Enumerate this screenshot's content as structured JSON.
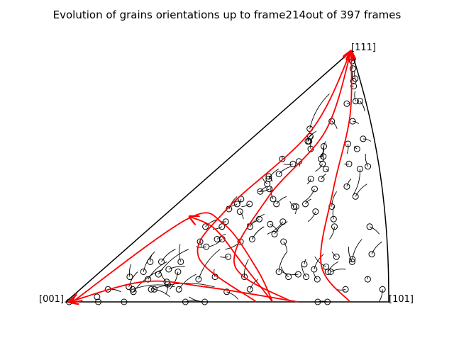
{
  "chart_data": {
    "type": "scatter",
    "title": "Evolution of grains orientations up to frame214out of 397 frames",
    "projection": "inverse pole figure (standard triangle)",
    "corner_labels": {
      "c001": "[001]",
      "c101": "[101]",
      "c111": "[111]"
    },
    "grid": false,
    "legend": "none",
    "colors": {
      "outline": "#000000",
      "trail": "#000000",
      "marker": "#000000",
      "curves": "#ff0000"
    },
    "coordinate_note": "u: fraction from [001] toward [101]; v: fraction from baseline toward [111]",
    "grains": [
      {
        "u": 0.01,
        "v": 0.0,
        "tu": 0.06,
        "tv": -0.09
      },
      {
        "u": 0.1,
        "v": 0.0,
        "tu": 0.06,
        "tv": -0.01
      },
      {
        "u": 0.09,
        "v": 0.05,
        "tu": 0.05,
        "tv": -0.01
      },
      {
        "u": 0.08,
        "v": 0.02,
        "tu": 0.14,
        "tv": -0.03
      },
      {
        "u": 0.18,
        "v": 0.0,
        "tu": 0.06,
        "tv": -0.02
      },
      {
        "u": 0.17,
        "v": 0.05,
        "tu": 0.13,
        "tv": 0.01
      },
      {
        "u": 0.18,
        "v": 0.04,
        "tu": 0.03,
        "tv": 0.09
      },
      {
        "u": 0.23,
        "v": 0.05,
        "tu": 0.2,
        "tv": 0.01
      },
      {
        "u": 0.24,
        "v": 0.05,
        "tu": 0.07,
        "tv": -0.03
      },
      {
        "u": 0.27,
        "v": 0.07,
        "tu": 0.02,
        "tv": -0.04
      },
      {
        "u": 0.32,
        "v": 0.05,
        "tu": 0.02,
        "tv": 0.06
      },
      {
        "u": 0.26,
        "v": 0.08,
        "tu": -0.04,
        "tv": 0.03
      },
      {
        "u": 0.15,
        "v": 0.06,
        "tu": -0.02,
        "tv": 0.06
      },
      {
        "u": 0.19,
        "v": 0.09,
        "tu": 0.01,
        "tv": 0.07
      },
      {
        "u": 0.21,
        "v": 0.11,
        "tu": 0.03,
        "tv": 0.1
      },
      {
        "u": 0.15,
        "v": 0.12,
        "tu": -0.03,
        "tv": 0.08
      },
      {
        "u": 0.12,
        "v": 0.1,
        "tu": -0.04,
        "tv": 0.05
      },
      {
        "u": 0.14,
        "v": 0.16,
        "tu": -0.02,
        "tv": 0.03
      },
      {
        "u": 0.18,
        "v": 0.16,
        "tu": 0.01,
        "tv": 0.05
      },
      {
        "u": 0.25,
        "v": 0.16,
        "tu": -0.06,
        "tv": 0.07
      },
      {
        "u": 0.23,
        "v": 0.13,
        "tu": 0.05,
        "tv": 0.01
      },
      {
        "u": 0.27,
        "v": 0.12,
        "tu": 0.02,
        "tv": -0.07
      },
      {
        "u": 0.36,
        "v": 0.09,
        "tu": 0.0,
        "tv": 0.12
      },
      {
        "u": 0.37,
        "v": 0.0,
        "tu": 0.05,
        "tv": 0.0
      },
      {
        "u": 0.43,
        "v": 0.0,
        "tu": -0.06,
        "tv": 0.02
      },
      {
        "u": 0.41,
        "v": 0.1,
        "tu": -0.02,
        "tv": 0.03
      },
      {
        "u": 0.48,
        "v": 0.04,
        "tu": 0.05,
        "tv": -0.03
      },
      {
        "u": 0.51,
        "v": 0.1,
        "tu": -0.02,
        "tv": 0.07
      },
      {
        "u": 0.55,
        "v": 0.05,
        "tu": 0.01,
        "tv": 0.04
      },
      {
        "u": 0.62,
        "v": 0.12,
        "tu": 0.0,
        "tv": 0.08
      },
      {
        "u": 0.66,
        "v": 0.1,
        "tu": -0.04,
        "tv": 0.04
      },
      {
        "u": 0.69,
        "v": 0.11,
        "tu": -0.06,
        "tv": 0.01
      },
      {
        "u": 0.7,
        "v": 0.15,
        "tu": 0.0,
        "tv": 0.02
      },
      {
        "u": 0.72,
        "v": 0.1,
        "tu": -0.03,
        "tv": 0.05
      },
      {
        "u": 0.76,
        "v": 0.09,
        "tu": -0.02,
        "tv": 0.03
      },
      {
        "u": 0.79,
        "v": 0.12,
        "tu": 0.03,
        "tv": 0.04
      },
      {
        "u": 0.8,
        "v": 0.12,
        "tu": 0.05,
        "tv": 0.01
      },
      {
        "u": 0.78,
        "v": 0.14,
        "tu": -0.05,
        "tv": 0.04
      },
      {
        "u": 0.81,
        "v": 0.18,
        "tu": -0.02,
        "tv": 0.02
      },
      {
        "u": 0.78,
        "v": 0.0,
        "tu": 0.03,
        "tv": 0.0
      },
      {
        "u": 0.81,
        "v": 0.0,
        "tu": -0.04,
        "tv": -0.01
      },
      {
        "u": 0.86,
        "v": 0.05,
        "tu": -0.03,
        "tv": 0.0
      },
      {
        "u": 0.87,
        "v": 0.16,
        "tu": -0.02,
        "tv": 0.06
      },
      {
        "u": 0.87,
        "v": 0.17,
        "tu": 0.03,
        "tv": 0.08
      },
      {
        "u": 0.93,
        "v": 0.09,
        "tu": 0.0,
        "tv": 0.01
      },
      {
        "u": 0.94,
        "v": 0.19,
        "tu": 0.04,
        "tv": 0.05
      },
      {
        "u": 0.98,
        "v": 0.05,
        "tu": -0.01,
        "tv": -0.05
      },
      {
        "u": 0.93,
        "v": 0.3,
        "tu": 0.04,
        "tv": -0.03
      },
      {
        "u": 0.86,
        "v": 0.42,
        "tu": 0.06,
        "tv": 0.05
      },
      {
        "u": 0.88,
        "v": 0.53,
        "tu": -0.03,
        "tv": -0.1
      },
      {
        "u": 0.93,
        "v": 0.54,
        "tu": -0.01,
        "tv": 0.05
      },
      {
        "u": 0.91,
        "v": 0.65,
        "tu": 0.06,
        "tv": -0.01
      },
      {
        "u": 0.92,
        "v": 0.8,
        "tu": 0.04,
        "tv": -0.04
      },
      {
        "u": 0.86,
        "v": 0.8,
        "tu": 0.0,
        "tv": 0.04
      },
      {
        "u": 0.85,
        "v": 0.93,
        "tu": 0.03,
        "tv": 0.06
      },
      {
        "u": 0.84,
        "v": 0.88,
        "tu": 0.01,
        "tv": 0.04
      },
      {
        "u": 0.84,
        "v": 0.86,
        "tu": -0.03,
        "tv": 0.0
      },
      {
        "u": 0.89,
        "v": 0.89,
        "tu": 0.02,
        "tv": 0.03
      },
      {
        "u": 0.85,
        "v": 0.96,
        "tu": 0.04,
        "tv": 0.01
      },
      {
        "u": 0.74,
        "v": 0.79,
        "tu": 0.03,
        "tv": 0.0
      },
      {
        "u": 0.82,
        "v": 0.72,
        "tu": 0.06,
        "tv": -0.01
      },
      {
        "u": 0.86,
        "v": 0.61,
        "tu": -0.02,
        "tv": 0.01
      },
      {
        "u": 0.81,
        "v": 0.55,
        "tu": -0.03,
        "tv": 0.0
      },
      {
        "u": 0.79,
        "v": 0.63,
        "tu": 0.0,
        "tv": -0.04
      },
      {
        "u": 0.81,
        "v": 0.46,
        "tu": 0.02,
        "tv": 0.03
      },
      {
        "u": 0.75,
        "v": 0.38,
        "tu": 0.01,
        "tv": 0.06
      },
      {
        "u": 0.77,
        "v": 0.33,
        "tu": -0.01,
        "tv": 0.05
      },
      {
        "u": 0.78,
        "v": 0.3,
        "tu": -0.01,
        "tv": -0.05
      },
      {
        "u": 0.74,
        "v": 0.13,
        "tu": 0.02,
        "tv": 0.06
      },
      {
        "u": 0.68,
        "v": 0.36,
        "tu": -0.02,
        "tv": -0.04
      },
      {
        "u": 0.64,
        "v": 0.45,
        "tu": -0.03,
        "tv": -0.05
      },
      {
        "u": 0.66,
        "v": 0.49,
        "tu": 0.02,
        "tv": 0.02
      },
      {
        "u": 0.67,
        "v": 0.53,
        "tu": 0.02,
        "tv": -0.01
      },
      {
        "u": 0.63,
        "v": 0.58,
        "tu": -0.02,
        "tv": 0.06
      },
      {
        "u": 0.64,
        "v": 0.55,
        "tu": -0.03,
        "tv": -0.03
      },
      {
        "u": 0.61,
        "v": 0.72,
        "tu": 0.07,
        "tv": -0.03
      },
      {
        "u": 0.61,
        "v": 0.62,
        "tu": 0.01,
        "tv": -0.04
      },
      {
        "u": 0.62,
        "v": 0.57,
        "tu": 0.0,
        "tv": 0.03
      },
      {
        "u": 0.6,
        "v": 0.49,
        "tu": -0.01,
        "tv": -0.02
      },
      {
        "u": 0.62,
        "v": 0.39,
        "tu": 0.02,
        "tv": 0.02
      },
      {
        "u": 0.57,
        "v": 0.38,
        "tu": -0.03,
        "tv": 0.02
      },
      {
        "u": 0.54,
        "v": 0.27,
        "tu": 0.03,
        "tv": 0.05
      },
      {
        "u": 0.55,
        "v": 0.32,
        "tu": -0.04,
        "tv": -0.05
      },
      {
        "u": 0.59,
        "v": 0.24,
        "tu": 0.03,
        "tv": -0.04
      },
      {
        "u": 0.58,
        "v": 0.38,
        "tu": 0.01,
        "tv": -0.03
      },
      {
        "u": 0.5,
        "v": 0.31,
        "tu": 0.05,
        "tv": -0.03
      },
      {
        "u": 0.46,
        "v": 0.25,
        "tu": 0.02,
        "tv": 0.05
      },
      {
        "u": 0.48,
        "v": 0.39,
        "tu": 0.03,
        "tv": 0.03
      },
      {
        "u": 0.45,
        "v": 0.41,
        "tu": -0.05,
        "tv": 0.05
      },
      {
        "u": 0.4,
        "v": 0.45,
        "tu": -0.05,
        "tv": -0.01
      },
      {
        "u": 0.44,
        "v": 0.33,
        "tu": -0.04,
        "tv": -0.02
      },
      {
        "u": 0.42,
        "v": 0.3,
        "tu": 0.03,
        "tv": 0.05
      },
      {
        "u": 0.42,
        "v": 0.24,
        "tu": -0.04,
        "tv": -0.03
      },
      {
        "u": 0.48,
        "v": 0.56,
        "tu": 0.02,
        "tv": -0.02
      },
      {
        "u": 0.45,
        "v": 0.55,
        "tu": -0.06,
        "tv": 0.0
      },
      {
        "u": 0.52,
        "v": 0.61,
        "tu": -0.03,
        "tv": 0.05
      },
      {
        "u": 0.48,
        "v": 0.64,
        "tu": -0.02,
        "tv": 0.02
      },
      {
        "u": 0.47,
        "v": 0.66,
        "tu": 0.03,
        "tv": 0.02
      },
      {
        "u": 0.47,
        "v": 0.64,
        "tu": 0.0,
        "tv": 0.03
      },
      {
        "u": 0.43,
        "v": 0.69,
        "tu": 0.01,
        "tv": 0.14
      },
      {
        "u": 0.35,
        "v": 0.5,
        "tu": 0.04,
        "tv": -0.02
      },
      {
        "u": 0.36,
        "v": 0.49,
        "tu": 0.02,
        "tv": 0.04
      },
      {
        "u": 0.37,
        "v": 0.47,
        "tu": -0.06,
        "tv": 0.03
      },
      {
        "u": 0.36,
        "v": 0.44,
        "tu": 0.02,
        "tv": 0.02
      },
      {
        "u": 0.4,
        "v": 0.51,
        "tu": 0.05,
        "tv": 0.03
      },
      {
        "u": 0.36,
        "v": 0.57,
        "tu": -0.01,
        "tv": 0.01
      },
      {
        "u": 0.27,
        "v": 0.37,
        "tu": -0.01,
        "tv": 0.05
      },
      {
        "u": 0.29,
        "v": 0.39,
        "tu": -0.04,
        "tv": -0.01
      },
      {
        "u": 0.29,
        "v": 0.41,
        "tu": 0.01,
        "tv": -0.02
      },
      {
        "u": 0.35,
        "v": 0.39,
        "tu": -0.03,
        "tv": -0.01
      },
      {
        "u": 0.33,
        "v": 0.36,
        "tu": 0.04,
        "tv": -0.03
      },
      {
        "u": 0.3,
        "v": 0.32,
        "tu": -0.02,
        "tv": 0.0
      },
      {
        "u": 0.3,
        "v": 0.3,
        "tu": -0.03,
        "tv": -0.01
      },
      {
        "u": 0.34,
        "v": 0.25,
        "tu": -0.03,
        "tv": -0.03
      },
      {
        "u": 0.32,
        "v": 0.25,
        "tu": 0.02,
        "tv": 0.02
      },
      {
        "u": 0.26,
        "v": 0.24,
        "tu": 0.02,
        "tv": -0.02
      },
      {
        "u": 0.23,
        "v": 0.3,
        "tu": 0.03,
        "tv": 0.03
      },
      {
        "u": 0.3,
        "v": 0.22,
        "tu": -0.04,
        "tv": 0.0
      },
      {
        "u": 0.41,
        "v": 0.18,
        "tu": -0.03,
        "tv": 0.0
      }
    ],
    "curves": [
      {
        "points": [
          [
            0.59,
            0.0
          ],
          [
            0.3,
            0.18
          ],
          [
            0.26,
            0.37
          ],
          [
            0.45,
            0.68
          ],
          [
            0.85,
            1.0
          ]
        ],
        "arrow": "end"
      },
      {
        "points": [
          [
            0.7,
            0.0
          ],
          [
            0.45,
            0.15
          ],
          [
            0.42,
            0.42
          ],
          [
            0.58,
            0.68
          ],
          [
            0.85,
            1.0
          ]
        ],
        "arrow": "end"
      },
      {
        "points": [
          [
            0.88,
            0.0
          ],
          [
            0.76,
            0.15
          ],
          [
            0.74,
            0.45
          ],
          [
            0.79,
            0.74
          ],
          [
            0.85,
            1.0
          ]
        ],
        "arrow": "end"
      },
      {
        "points": [
          [
            0.64,
            0.0
          ],
          [
            0.54,
            0.13
          ],
          [
            0.3,
            0.31
          ],
          [
            0.12,
            0.33
          ],
          [
            0.02,
            0.0
          ]
        ],
        "arrow": "end"
      },
      {
        "points": [
          [
            0.64,
            0.0
          ],
          [
            0.48,
            0.15
          ],
          [
            0.28,
            0.29
          ],
          [
            0.12,
            0.34
          ]
        ],
        "arrow": "end"
      },
      {
        "points": [
          [
            0.72,
            0.0
          ],
          [
            0.4,
            0.06
          ],
          [
            0.18,
            0.08
          ],
          [
            0.01,
            0.0
          ]
        ],
        "arrow": "end"
      }
    ]
  }
}
